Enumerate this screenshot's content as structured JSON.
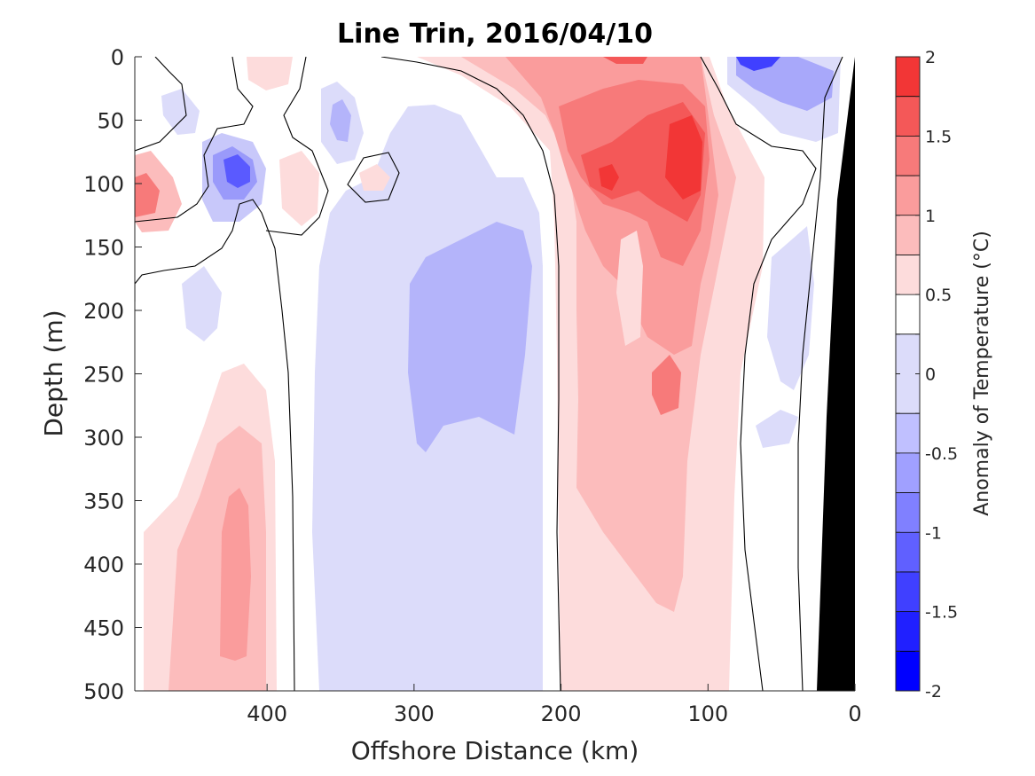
{
  "chart_data": {
    "type": "contour",
    "title": "Line Trin, 2016/04/10",
    "xlabel": "Offshore Distance (km)",
    "ylabel": "Depth (m)",
    "xlim": [
      490,
      0
    ],
    "ylim": [
      0,
      500
    ],
    "x_ticks": [
      400,
      300,
      200,
      100,
      0
    ],
    "x_tick_labels": [
      "400",
      "300",
      "200",
      "100",
      "0"
    ],
    "y_ticks": [
      0,
      50,
      100,
      150,
      200,
      250,
      300,
      350,
      400,
      450,
      500
    ],
    "y_tick_labels": [
      "0",
      "50",
      "100",
      "150",
      "200",
      "250",
      "300",
      "350",
      "400",
      "450",
      "500"
    ],
    "colorbar": {
      "label": "Anomaly of Temperature (°C)",
      "range": [
        -2,
        2
      ],
      "tick_values": [
        2,
        1.5,
        1,
        0.5,
        0,
        -0.5,
        -1,
        -1.5,
        -2
      ],
      "tick_labels": [
        "2",
        "1.5",
        "1",
        "0.5",
        "0",
        "-0.5",
        "-1",
        "-1.5",
        "-2"
      ],
      "levels": [
        -2,
        -1.75,
        -1.5,
        -1.25,
        -1,
        -0.75,
        -0.5,
        -0.25,
        0.25,
        0.5,
        0.75,
        1,
        1.25,
        1.5,
        1.75,
        2
      ],
      "colors": [
        "#0000ff",
        "#2020ff",
        "#4040ff",
        "#6060ff",
        "#8080ff",
        "#a0a0ff",
        "#c0c0ff",
        "#dcdcfa",
        "#ffffff",
        "#fddcdc",
        "#fcbcbc",
        "#fa9c9c",
        "#f77a7a",
        "#f45858",
        "#f23636",
        "#ff0000"
      ]
    },
    "features": [
      {
        "name": "Warm core, max > 1.75 °C",
        "x_range_km": [
          95,
          175
        ],
        "depth_range_m": [
          50,
          130
        ]
      },
      {
        "name": "Warm deep plume",
        "x_range_km": [
          75,
          205
        ],
        "depth_range_m": [
          0,
          500
        ]
      },
      {
        "name": "Warm lens",
        "x_range_km": [
          395,
          460
        ],
        "depth_range_m": [
          240,
          500
        ]
      },
      {
        "name": "Cold column",
        "x_range_km": [
          210,
          420
        ],
        "depth_range_m": [
          130,
          500
        ]
      },
      {
        "name": "Cold eddy near surface",
        "x_range_km": [
          20,
          100
        ],
        "depth_range_m": [
          0,
          60
        ]
      },
      {
        "name": "Cold spot",
        "x_range_km": [
          400,
          445
        ],
        "depth_range_m": [
          70,
          110
        ]
      },
      {
        "name": "Bottom / continental slope (masked)",
        "x_range_km": [
          0,
          30
        ],
        "depth_range_m": [
          0,
          500
        ]
      }
    ]
  }
}
